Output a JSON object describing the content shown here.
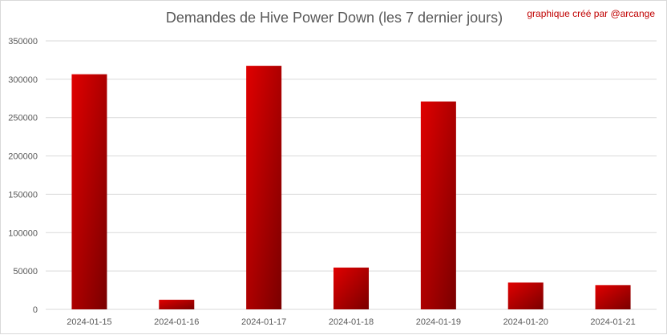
{
  "chart_data": {
    "type": "bar",
    "title": "Demandes de Hive Power Down (les 7 dernier jours)",
    "credit": "graphique créé par @arcange",
    "categories": [
      "2024-01-15",
      "2024-01-16",
      "2024-01-17",
      "2024-01-18",
      "2024-01-19",
      "2024-01-20",
      "2024-01-21"
    ],
    "values": [
      306500,
      12500,
      317500,
      54500,
      271000,
      35000,
      31500
    ],
    "ylim": [
      0,
      350000
    ],
    "yticks": [
      0,
      50000,
      100000,
      150000,
      200000,
      250000,
      300000,
      350000
    ],
    "xlabel": "",
    "ylabel": "",
    "grid": true,
    "legend": "none",
    "colors": {
      "bar_light": "#e00000",
      "bar_dark": "#7a0000",
      "grid": "#d9d9d9",
      "text": "#595959",
      "credit": "#c00000"
    }
  }
}
